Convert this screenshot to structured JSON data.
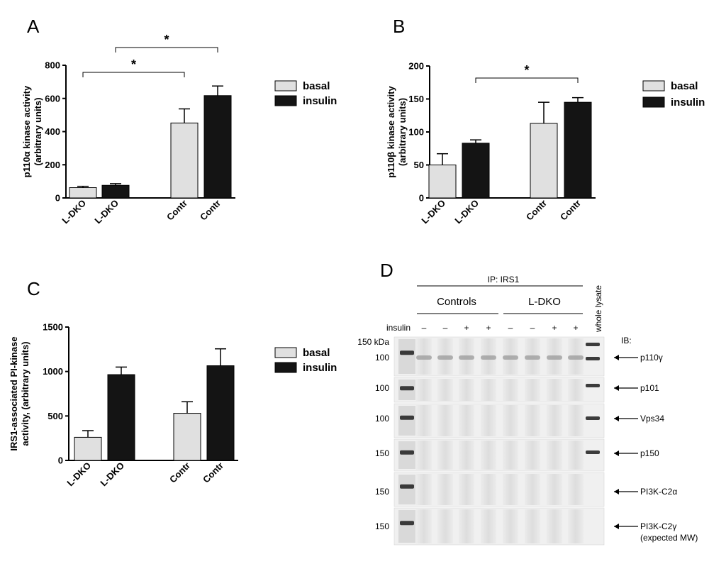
{
  "chart_data": [
    {
      "panel": "A",
      "type": "bar",
      "ylabel": [
        "p110α kinase activity",
        "(arbitrary units)"
      ],
      "ylim": [
        0,
        800
      ],
      "yticks": [
        "0",
        "200",
        "400",
        "600",
        "800"
      ],
      "ytick_values": [
        0,
        200,
        400,
        600,
        800
      ],
      "categories": [
        "L-DKO",
        "L-DKO",
        "Contr",
        "Contr"
      ],
      "bars": [
        {
          "series": "basal",
          "value": 62,
          "error": 8
        },
        {
          "series": "insulin",
          "value": 76,
          "error": 10
        },
        {
          "series": "basal",
          "value": 452,
          "error": 85
        },
        {
          "series": "insulin",
          "value": 617,
          "error": 58
        }
      ],
      "significance": [
        {
          "from": 0,
          "to": 2,
          "label": "*"
        },
        {
          "from": 1,
          "to": 3,
          "label": "*"
        }
      ],
      "legend": [
        {
          "name": "basal",
          "color": "#e0e0e0"
        },
        {
          "name": "insulin",
          "color": "#141414"
        }
      ],
      "legend_position": "right"
    },
    {
      "panel": "B",
      "type": "bar",
      "ylabel": [
        "p110β kinase activity",
        "(arbitrary units)"
      ],
      "ylim": [
        0,
        200
      ],
      "yticks": [
        "0",
        "50",
        "100",
        "150",
        "200"
      ],
      "ytick_values": [
        0,
        50,
        100,
        150,
        200
      ],
      "categories": [
        "L-DKO",
        "L-DKO",
        "Contr",
        "Contr"
      ],
      "bars": [
        {
          "series": "basal",
          "value": 50,
          "error": 17
        },
        {
          "series": "insulin",
          "value": 83,
          "error": 5
        },
        {
          "series": "basal",
          "value": 113,
          "error": 32
        },
        {
          "series": "insulin",
          "value": 145,
          "error": 7
        }
      ],
      "significance": [
        {
          "from": 1,
          "to": 3,
          "label": "*"
        }
      ],
      "legend": [
        {
          "name": "basal",
          "color": "#e0e0e0"
        },
        {
          "name": "insulin",
          "color": "#141414"
        }
      ],
      "legend_position": "right"
    },
    {
      "panel": "C",
      "type": "bar",
      "ylabel": [
        "IRS1-associated PI-kinase",
        "activity, (arbitrary units)"
      ],
      "ylim": [
        0,
        1500
      ],
      "yticks": [
        "0",
        "500",
        "1000",
        "1500"
      ],
      "ytick_values": [
        0,
        500,
        1000,
        1500
      ],
      "categories": [
        "L-DKO",
        "L-DKO",
        "Contr",
        "Contr"
      ],
      "bars": [
        {
          "series": "basal",
          "value": 260,
          "error": 75
        },
        {
          "series": "insulin",
          "value": 965,
          "error": 85
        },
        {
          "series": "basal",
          "value": 530,
          "error": 130
        },
        {
          "series": "insulin",
          "value": 1065,
          "error": 190
        }
      ],
      "significance": [],
      "legend": [
        {
          "name": "basal",
          "color": "#e0e0e0"
        },
        {
          "name": "insulin",
          "color": "#141414"
        }
      ],
      "legend_position": "right"
    }
  ],
  "blot": {
    "panel": "D",
    "ip_label": "IP: IRS1",
    "groups": [
      "Controls",
      "L-DKO"
    ],
    "whole_lysate_label": "whole lysate",
    "insulin_label": "insulin",
    "insulin_signs": [
      "–",
      "–",
      "+",
      "+",
      "–",
      "–",
      "+",
      "+"
    ],
    "ib_label": "IB:",
    "rows": [
      {
        "mw": "150 kDa",
        "mw2": "100",
        "target": "p110γ"
      },
      {
        "mw": "100",
        "target": "p101"
      },
      {
        "mw": "100",
        "target": "Vps34"
      },
      {
        "mw": "150",
        "target": "p150"
      },
      {
        "mw": "150",
        "target": "PI3K-C2α"
      },
      {
        "mw": "150",
        "target": "PI3K-C2γ",
        "note": "(expected MW)"
      }
    ]
  }
}
